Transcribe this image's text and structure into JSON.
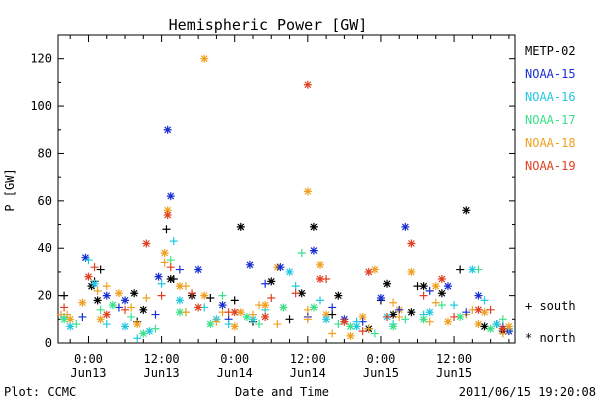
{
  "chart_data": {
    "type": "scatter",
    "title": "Hemispheric Power [GW]",
    "xlabel": "Date and Time",
    "ylabel": "P [GW]",
    "ylim": [
      0,
      130
    ],
    "y_ticks": [
      0,
      20,
      40,
      60,
      80,
      100,
      120
    ],
    "x_range_hours": [
      -5,
      70
    ],
    "x_ticks": [
      {
        "hour": 0,
        "time": "0:00",
        "day": "Jun13"
      },
      {
        "hour": 12,
        "time": "12:00",
        "day": "Jun13"
      },
      {
        "hour": 24,
        "time": "0:00",
        "day": "Jun14"
      },
      {
        "hour": 36,
        "time": "12:00",
        "day": "Jun14"
      },
      {
        "hour": 48,
        "time": "0:00",
        "day": "Jun15"
      },
      {
        "hour": 60,
        "time": "12:00",
        "day": "Jun15"
      }
    ],
    "grid": false,
    "legend_position": "right",
    "series": [
      {
        "name": "METP-02",
        "color": "#000000"
      },
      {
        "name": "NOAA-15",
        "color": "#1a2fd0"
      },
      {
        "name": "NOAA-16",
        "color": "#22c8e0"
      },
      {
        "name": "NOAA-17",
        "color": "#3ce08a"
      },
      {
        "name": "NOAA-18",
        "color": "#f0a020"
      },
      {
        "name": "NOAA-19",
        "color": "#e04020"
      }
    ],
    "marker_legend": [
      {
        "symbol": "+",
        "label": "south"
      },
      {
        "symbol": "*",
        "label": "north"
      }
    ],
    "points": [
      [
        4,
        1,
        "+",
        [
          -4.5,
          12
        ],
        [
          3,
          24
        ],
        [
          9.5,
          19
        ],
        [
          16,
          24
        ],
        [
          22,
          13
        ],
        [
          28,
          16
        ],
        [
          36,
          14
        ],
        [
          42,
          9
        ],
        [
          50,
          17
        ],
        [
          56,
          9
        ],
        [
          62,
          12
        ],
        [
          68,
          6
        ]
      ],
      [
        4,
        1,
        "*",
        [
          -3,
          10
        ],
        [
          5,
          21
        ],
        [
          12.5,
          38
        ],
        [
          19,
          20
        ],
        [
          25,
          13
        ],
        [
          31,
          32
        ],
        [
          39,
          12
        ],
        [
          45,
          11
        ],
        [
          51,
          14
        ],
        [
          57,
          24
        ],
        [
          64,
          8
        ],
        [
          69,
          5
        ]
      ],
      [
        0,
        1,
        "+",
        [
          -4,
          20
        ],
        [
          1,
          26
        ],
        [
          2,
          31
        ],
        [
          8,
          9
        ],
        [
          12.8,
          48
        ],
        [
          14,
          27
        ],
        [
          20,
          19
        ],
        [
          24,
          18
        ],
        [
          27,
          9
        ],
        [
          33,
          10
        ],
        [
          40,
          12
        ],
        [
          48,
          18
        ],
        [
          54,
          24
        ],
        [
          61,
          31
        ],
        [
          67,
          8
        ]
      ],
      [
        0,
        1,
        "*",
        [
          0.5,
          24
        ],
        [
          1.5,
          18
        ],
        [
          7.5,
          21
        ],
        [
          9,
          14
        ],
        [
          13.5,
          27
        ],
        [
          17,
          20
        ],
        [
          25,
          49
        ],
        [
          30,
          26
        ],
        [
          35,
          21
        ],
        [
          37,
          49
        ],
        [
          41,
          20
        ],
        [
          46,
          6
        ],
        [
          49,
          25
        ],
        [
          50,
          12
        ],
        [
          53,
          13
        ],
        [
          55,
          24
        ],
        [
          58,
          21
        ],
        [
          62,
          56
        ],
        [
          65,
          7
        ],
        [
          68,
          5
        ]
      ],
      [
        1,
        1,
        "+",
        [
          -1,
          11
        ],
        [
          5,
          15
        ],
        [
          11,
          12
        ],
        [
          15,
          31
        ],
        [
          23,
          10
        ],
        [
          29,
          25
        ],
        [
          36,
          11
        ],
        [
          40,
          15
        ],
        [
          45,
          9
        ],
        [
          51,
          14
        ],
        [
          56,
          22
        ],
        [
          62,
          13
        ],
        [
          68,
          7
        ]
      ],
      [
        1,
        1,
        "*",
        [
          -0.5,
          36
        ],
        [
          3,
          20
        ],
        [
          6,
          18
        ],
        [
          11.5,
          28
        ],
        [
          13,
          90
        ],
        [
          13.5,
          62
        ],
        [
          18,
          31
        ],
        [
          22,
          16
        ],
        [
          26.5,
          33
        ],
        [
          31.5,
          32
        ],
        [
          37,
          39
        ],
        [
          42,
          10
        ],
        [
          48,
          19
        ],
        [
          52,
          49
        ],
        [
          59,
          24
        ],
        [
          64,
          20
        ],
        [
          69,
          5
        ]
      ],
      [
        2,
        1,
        "+",
        [
          -4,
          11
        ],
        [
          0,
          35
        ],
        [
          3,
          8
        ],
        [
          8,
          2
        ],
        [
          12,
          25
        ],
        [
          14,
          43
        ],
        [
          19,
          15
        ],
        [
          23,
          8
        ],
        [
          29,
          14
        ],
        [
          34,
          24
        ],
        [
          38,
          18
        ],
        [
          44,
          9
        ],
        [
          50,
          8
        ],
        [
          55,
          12
        ],
        [
          60,
          16
        ],
        [
          65,
          18
        ],
        [
          69,
          6
        ]
      ],
      [
        2,
        1,
        "*",
        [
          -3,
          7
        ],
        [
          1,
          25
        ],
        [
          6,
          7
        ],
        [
          10,
          5
        ],
        [
          15,
          18
        ],
        [
          21,
          10
        ],
        [
          27,
          10
        ],
        [
          33,
          30
        ],
        [
          39,
          10
        ],
        [
          44,
          7
        ],
        [
          49,
          11
        ],
        [
          56,
          13
        ],
        [
          63,
          31
        ],
        [
          67,
          8
        ]
      ],
      [
        3,
        1,
        "+",
        [
          -2,
          8
        ],
        [
          2,
          14
        ],
        [
          7,
          11
        ],
        [
          11,
          6
        ],
        [
          13.5,
          35
        ],
        [
          16,
          13
        ],
        [
          22,
          20
        ],
        [
          28,
          8
        ],
        [
          35,
          38
        ],
        [
          41,
          8
        ],
        [
          47,
          4
        ],
        [
          52,
          10
        ],
        [
          58,
          16
        ],
        [
          64,
          31
        ],
        [
          68,
          10
        ]
      ],
      [
        3,
        1,
        "*",
        [
          -4,
          10
        ],
        [
          4,
          16
        ],
        [
          9,
          4
        ],
        [
          15,
          13
        ],
        [
          20,
          8
        ],
        [
          26,
          11
        ],
        [
          32,
          15
        ],
        [
          37,
          15
        ],
        [
          43,
          7
        ],
        [
          50,
          7
        ],
        [
          55,
          10
        ],
        [
          61,
          11
        ],
        [
          66,
          6
        ]
      ],
      [
        4,
        1,
        "+",
        [
          -3.5,
          12
        ],
        [
          1.5,
          22
        ],
        [
          7,
          15
        ],
        [
          12.5,
          34
        ],
        [
          16,
          13
        ],
        [
          21,
          9
        ],
        [
          27,
          12
        ],
        [
          31,
          8
        ],
        [
          36,
          10
        ],
        [
          40,
          4
        ],
        [
          46,
          6
        ],
        [
          51,
          11
        ],
        [
          57,
          17
        ],
        [
          63,
          14
        ],
        [
          68,
          4
        ]
      ],
      [
        4,
        1,
        "*",
        [
          -1,
          17
        ],
        [
          2,
          10
        ],
        [
          8,
          8
        ],
        [
          13,
          56
        ],
        [
          15,
          24
        ],
        [
          19,
          120
        ],
        [
          24,
          7
        ],
        [
          29,
          16
        ],
        [
          36,
          64
        ],
        [
          38,
          33
        ],
        [
          43,
          3
        ],
        [
          47,
          31
        ],
        [
          53,
          30
        ],
        [
          59,
          9
        ],
        [
          65,
          13
        ],
        [
          69,
          7
        ]
      ],
      [
        5,
        1,
        "+",
        [
          -4,
          15
        ],
        [
          1,
          32
        ],
        [
          6,
          14
        ],
        [
          12,
          20
        ],
        [
          13.5,
          32
        ],
        [
          17,
          21
        ],
        [
          23,
          13
        ],
        [
          30,
          19
        ],
        [
          34,
          21
        ],
        [
          39,
          27
        ],
        [
          45,
          5
        ],
        [
          49,
          11
        ],
        [
          55,
          20
        ],
        [
          60,
          11
        ],
        [
          66,
          14
        ]
      ],
      [
        5,
        1,
        "*",
        [
          0,
          28
        ],
        [
          3,
          12
        ],
        [
          9.5,
          42
        ],
        [
          13,
          54
        ],
        [
          18,
          15
        ],
        [
          24,
          13
        ],
        [
          29,
          11
        ],
        [
          36,
          109
        ],
        [
          38,
          27
        ],
        [
          42,
          9
        ],
        [
          46,
          30
        ],
        [
          53,
          42
        ],
        [
          58,
          27
        ],
        [
          64,
          14
        ],
        [
          68,
          6
        ]
      ]
    ]
  }
}
